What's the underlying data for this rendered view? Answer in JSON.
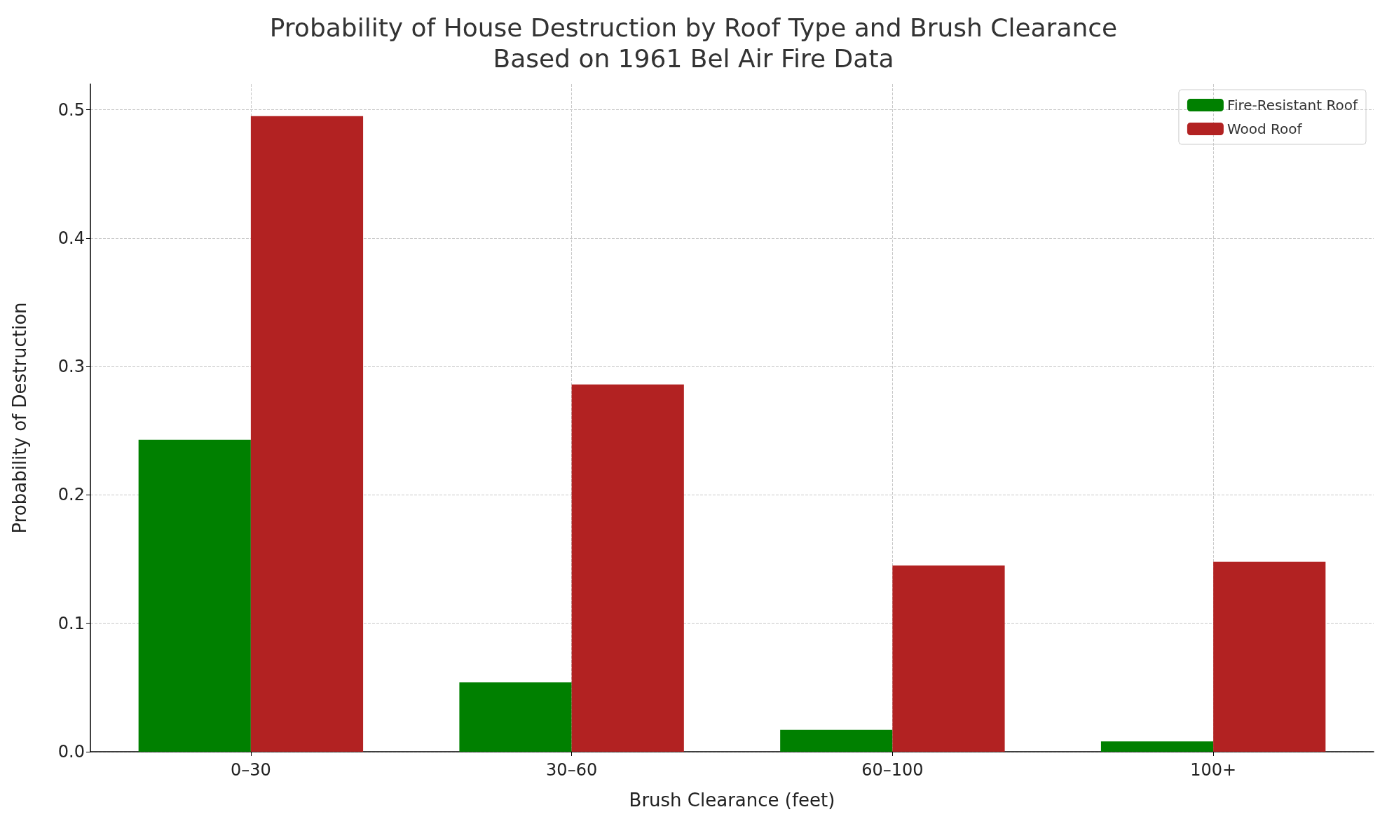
{
  "chart_data": {
    "type": "bar",
    "title": "Probability of House Destruction by Roof Type and Brush Clearance\nBased on 1961 Bel Air Fire Data",
    "xlabel": "Brush Clearance (feet)",
    "ylabel": "Probability of Destruction",
    "categories": [
      "0–30",
      "30–60",
      "60–100",
      "100+"
    ],
    "series": [
      {
        "name": "Fire-Resistant Roof",
        "color": "#008000",
        "values": [
          0.243,
          0.054,
          0.017,
          0.008
        ]
      },
      {
        "name": "Wood Roof",
        "color": "#b22222",
        "values": [
          0.495,
          0.286,
          0.145,
          0.148
        ]
      }
    ],
    "ylim": [
      0,
      0.52
    ],
    "yticks": [
      {
        "value": 0,
        "label": "0.0"
      },
      0.1,
      0.2,
      0.3,
      0.4,
      0.5
    ],
    "grid": true,
    "legend": "top right"
  }
}
